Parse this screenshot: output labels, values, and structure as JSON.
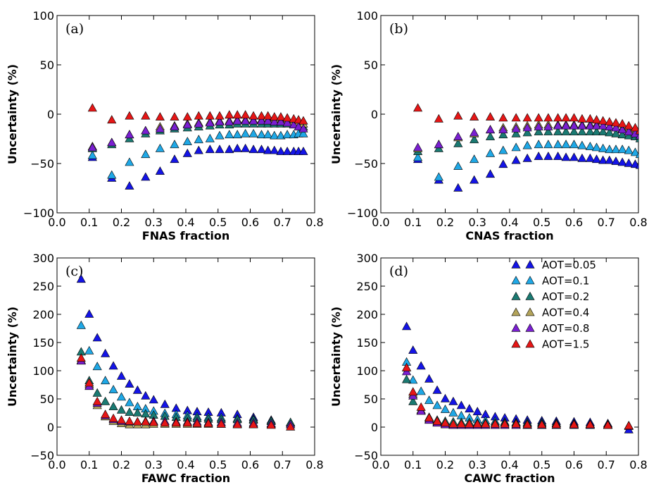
{
  "chart_data": [
    {
      "type": "scatter",
      "panel_label": "(a)",
      "xlabel": "FNAS fraction",
      "ylabel": "Uncertainty (%)",
      "xlim": [
        0.0,
        0.8
      ],
      "ylim": [
        -100,
        100
      ],
      "xticks": [
        "0.0",
        "0.1",
        "0.2",
        "0.3",
        "0.4",
        "0.5",
        "0.6",
        "0.7",
        "0.8"
      ],
      "yticks": [
        "100",
        "50",
        "0",
        "−50",
        "−100"
      ],
      "x": [
        0.11,
        0.17,
        0.225,
        0.275,
        0.32,
        0.365,
        0.405,
        0.44,
        0.475,
        0.505,
        0.535,
        0.56,
        0.585,
        0.61,
        0.635,
        0.655,
        0.675,
        0.695,
        0.715,
        0.735,
        0.75,
        0.765
      ],
      "series": [
        {
          "name": "AOT=0.05",
          "values": [
            -44,
            -65,
            -73,
            -64,
            -58,
            -46,
            -40,
            -37,
            -36,
            -36,
            -36,
            -35,
            -35,
            -36,
            -36,
            -37,
            -37,
            -38,
            -38,
            -38,
            -38,
            -38
          ]
        },
        {
          "name": "AOT=0.1",
          "values": [
            -42,
            -62,
            -49,
            -41,
            -35,
            -31,
            -28,
            -26,
            -25,
            -22,
            -21,
            -21,
            -20,
            -20,
            -21,
            -21,
            -22,
            -22,
            -21,
            -21,
            -20,
            -20
          ]
        },
        {
          "name": "AOT=0.2",
          "values": [
            -35,
            -31,
            -25,
            -20,
            -17,
            -15,
            -14,
            -13,
            -12,
            -11,
            -11,
            -10,
            -10,
            -10,
            -10,
            -10,
            -10,
            -10,
            -10,
            -9,
            -9,
            -13
          ]
        },
        {
          "name": "AOT=0.4",
          "values": [
            -33,
            -29,
            -21,
            -17,
            -13,
            -12,
            -10,
            -9,
            -8,
            -7,
            -7,
            -6,
            -6,
            -6,
            -6,
            -6,
            -6,
            -7,
            -7,
            -8,
            -9,
            -10
          ]
        },
        {
          "name": "AOT=0.8",
          "values": [
            -34,
            -29,
            -21,
            -17,
            -15,
            -13,
            -11,
            -10,
            -9,
            -8,
            -8,
            -7,
            -7,
            -7,
            -7,
            -7,
            -8,
            -8,
            -9,
            -11,
            -13,
            -15
          ]
        },
        {
          "name": "AOT=1.5",
          "values": [
            6,
            -6,
            -2,
            -2,
            -3,
            -3,
            -3,
            -2,
            -2,
            -2,
            -1,
            -1,
            -1,
            -2,
            -2,
            -2,
            -3,
            -3,
            -4,
            -5,
            -6,
            -7
          ]
        }
      ]
    },
    {
      "type": "scatter",
      "panel_label": "(b)",
      "xlabel": "CNAS fraction",
      "ylabel": "Uncertainty (%)",
      "xlim": [
        0.0,
        0.8
      ],
      "ylim": [
        -100,
        100
      ],
      "xticks": [
        "0.0",
        "0.1",
        "0.2",
        "0.3",
        "0.4",
        "0.5",
        "0.6",
        "0.7",
        "0.8"
      ],
      "yticks": [
        "100",
        "50",
        "0",
        "−50",
        "−100"
      ],
      "x": [
        0.115,
        0.18,
        0.24,
        0.29,
        0.34,
        0.38,
        0.42,
        0.455,
        0.49,
        0.52,
        0.55,
        0.575,
        0.6,
        0.625,
        0.65,
        0.67,
        0.69,
        0.71,
        0.73,
        0.75,
        0.77,
        0.79,
        0.805
      ],
      "series": [
        {
          "name": "AOT=0.05",
          "values": [
            -46,
            -67,
            -75,
            -67,
            -61,
            -51,
            -47,
            -45,
            -43,
            -43,
            -43,
            -44,
            -44,
            -45,
            -45,
            -46,
            -47,
            -47,
            -48,
            -49,
            -50,
            -51,
            -52
          ]
        },
        {
          "name": "AOT=0.1",
          "values": [
            -44,
            -64,
            -53,
            -46,
            -40,
            -37,
            -34,
            -32,
            -31,
            -31,
            -31,
            -31,
            -31,
            -32,
            -33,
            -34,
            -35,
            -36,
            -36,
            -36,
            -37,
            -39,
            -41
          ]
        },
        {
          "name": "AOT=0.2",
          "values": [
            -38,
            -35,
            -30,
            -26,
            -23,
            -21,
            -20,
            -19,
            -18,
            -18,
            -18,
            -18,
            -18,
            -18,
            -18,
            -18,
            -18,
            -19,
            -20,
            -21,
            -22,
            -23,
            -25
          ]
        },
        {
          "name": "AOT=0.4",
          "values": [
            -35,
            -31,
            -24,
            -20,
            -16,
            -14,
            -13,
            -12,
            -11,
            -11,
            -11,
            -11,
            -11,
            -11,
            -11,
            -11,
            -12,
            -13,
            -14,
            -15,
            -16,
            -18,
            -22
          ]
        },
        {
          "name": "AOT=0.8",
          "values": [
            -34,
            -31,
            -23,
            -19,
            -16,
            -16,
            -15,
            -14,
            -13,
            -13,
            -12,
            -12,
            -12,
            -12,
            -12,
            -12,
            -12,
            -13,
            -14,
            -16,
            -18,
            -20,
            -22
          ]
        },
        {
          "name": "AOT=1.5",
          "values": [
            6,
            -5,
            -2,
            -3,
            -3,
            -4,
            -4,
            -4,
            -4,
            -4,
            -4,
            -4,
            -4,
            -5,
            -5,
            -6,
            -7,
            -8,
            -9,
            -10,
            -12,
            -14,
            -17
          ]
        }
      ]
    },
    {
      "type": "scatter",
      "panel_label": "(c)",
      "xlabel": "FAWC fraction",
      "ylabel": "Uncertainty (%)",
      "xlim": [
        0.0,
        0.8
      ],
      "ylim": [
        -50,
        300
      ],
      "xticks": [
        "0.0",
        "0.1",
        "0.2",
        "0.3",
        "0.4",
        "0.5",
        "0.6",
        "0.7",
        "0.8"
      ],
      "yticks": [
        "300",
        "250",
        "200",
        "150",
        "100",
        "50",
        "0",
        "−50"
      ],
      "x": [
        0.075,
        0.1,
        0.125,
        0.15,
        0.175,
        0.2,
        0.225,
        0.25,
        0.275,
        0.3,
        0.335,
        0.37,
        0.405,
        0.435,
        0.47,
        0.51,
        0.56,
        0.61,
        0.665,
        0.725
      ],
      "series": [
        {
          "name": "AOT=0.05",
          "values": [
            262,
            200,
            158,
            130,
            108,
            90,
            76,
            65,
            55,
            48,
            40,
            33,
            29,
            27,
            26,
            25,
            22,
            17,
            12,
            7
          ]
        },
        {
          "name": "AOT=0.1",
          "values": [
            180,
            135,
            107,
            82,
            66,
            53,
            43,
            36,
            32,
            28,
            24,
            22,
            20,
            18,
            17,
            16,
            15,
            14,
            10,
            7
          ]
        },
        {
          "name": "AOT=0.2",
          "values": [
            133,
            82,
            60,
            45,
            36,
            30,
            26,
            25,
            23,
            21,
            19,
            17,
            16,
            15,
            14,
            13,
            13,
            12,
            10,
            8
          ]
        },
        {
          "name": "AOT=0.4",
          "values": [
            118,
            75,
            38,
            18,
            10,
            6,
            4,
            4,
            4,
            5,
            5,
            5,
            5,
            5,
            5,
            5,
            5,
            5,
            5,
            4
          ]
        },
        {
          "name": "AOT=0.8",
          "values": [
            117,
            72,
            42,
            20,
            13,
            10,
            9,
            9,
            10,
            10,
            10,
            9,
            9,
            9,
            8,
            8,
            7,
            7,
            6,
            4
          ]
        },
        {
          "name": "AOT=1.5",
          "values": [
            122,
            78,
            45,
            22,
            15,
            12,
            10,
            9,
            9,
            8,
            7,
            7,
            7,
            6,
            6,
            5,
            4,
            4,
            3,
            0
          ]
        }
      ]
    },
    {
      "type": "scatter",
      "panel_label": "(d)",
      "xlabel": "CAWC fraction",
      "ylabel": "Uncertainty (%)",
      "xlim": [
        0.0,
        0.8
      ],
      "ylim": [
        -50,
        300
      ],
      "xticks": [
        "0.0",
        "0.1",
        "0.2",
        "0.3",
        "0.4",
        "0.5",
        "0.6",
        "0.7",
        "0.8"
      ],
      "yticks": [
        "300",
        "250",
        "200",
        "150",
        "100",
        "50",
        "0",
        "−50"
      ],
      "legend_position": "top-right",
      "x": [
        0.08,
        0.1,
        0.125,
        0.15,
        0.175,
        0.2,
        0.225,
        0.25,
        0.275,
        0.3,
        0.325,
        0.355,
        0.385,
        0.42,
        0.455,
        0.5,
        0.545,
        0.6,
        0.65,
        0.705,
        0.77
      ],
      "series": [
        {
          "name": "AOT=0.05",
          "values": [
            178,
            136,
            108,
            85,
            65,
            50,
            45,
            38,
            32,
            27,
            22,
            18,
            16,
            14,
            12,
            11,
            10,
            9,
            8,
            6,
            -5
          ]
        },
        {
          "name": "AOT=0.1",
          "values": [
            115,
            83,
            63,
            47,
            38,
            31,
            25,
            20,
            16,
            13,
            11,
            10,
            9,
            8,
            8,
            8,
            7,
            6,
            5,
            4,
            2
          ]
        },
        {
          "name": "AOT=0.2",
          "values": [
            84,
            45,
            28,
            17,
            12,
            10,
            9,
            8,
            8,
            7,
            7,
            7,
            7,
            7,
            6,
            6,
            6,
            5,
            5,
            4,
            2
          ]
        },
        {
          "name": "AOT=0.4",
          "values": [
            105,
            58,
            30,
            14,
            8,
            5,
            3,
            3,
            3,
            3,
            3,
            3,
            3,
            3,
            3,
            3,
            3,
            3,
            3,
            3,
            2
          ]
        },
        {
          "name": "AOT=0.8",
          "values": [
            98,
            55,
            28,
            12,
            7,
            4,
            3,
            3,
            3,
            3,
            3,
            3,
            3,
            3,
            3,
            3,
            3,
            3,
            3,
            3,
            1
          ]
        },
        {
          "name": "AOT=1.5",
          "values": [
            105,
            62,
            35,
            16,
            10,
            7,
            5,
            5,
            5,
            5,
            5,
            5,
            5,
            5,
            4,
            4,
            4,
            4,
            4,
            3,
            2
          ]
        }
      ]
    }
  ],
  "colors": {
    "AOT=0.05": "#1414e6",
    "AOT=0.1": "#1fa8e6",
    "AOT=0.2": "#1a7a72",
    "AOT=0.4": "#b3a45a",
    "AOT=0.8": "#7a1fd1",
    "AOT=1.5": "#e61616"
  }
}
